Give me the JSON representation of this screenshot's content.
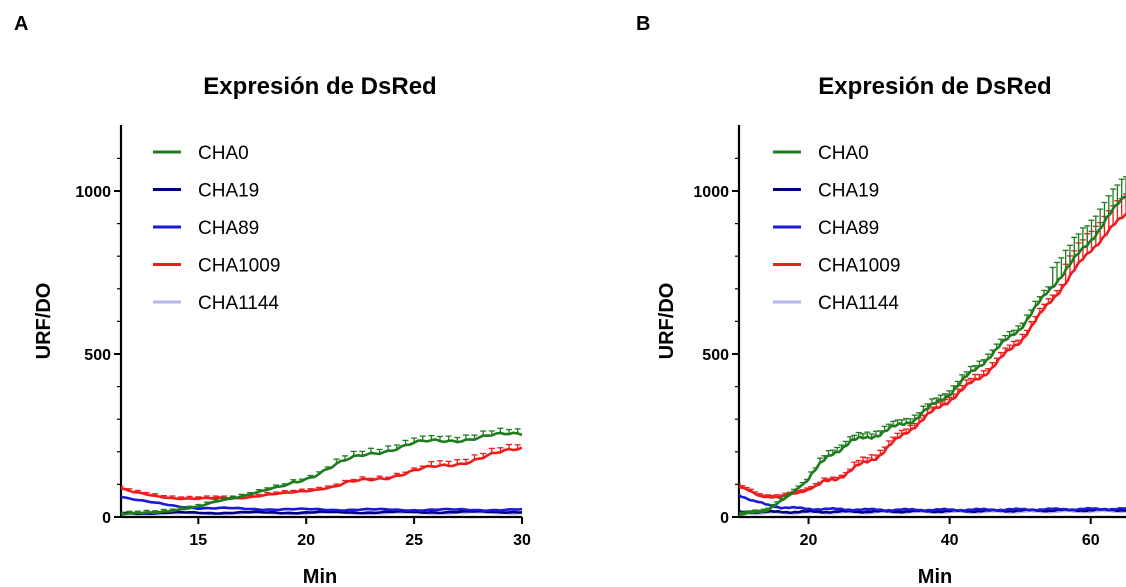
{
  "chart_data": [
    {
      "panel": "A",
      "type": "line",
      "title": "Expresión de DsRed",
      "xlabel": "Min",
      "ylabel": "URF/DO",
      "xlim": [
        11,
        30
      ],
      "ylim": [
        0,
        1200
      ],
      "xticks": [
        15,
        20,
        25,
        30
      ],
      "yticks": [
        0,
        500,
        1000
      ],
      "error_bars": true,
      "legend_position": "top-left",
      "series": [
        {
          "name": "CHA0",
          "color": "#1e7b1e",
          "x": [
            11,
            13,
            15,
            16,
            17,
            18,
            19,
            20,
            21,
            22,
            23,
            24,
            25,
            26,
            27,
            28,
            29,
            30
          ],
          "y": [
            5,
            15,
            30,
            50,
            65,
            80,
            95,
            120,
            150,
            175,
            195,
            210,
            225,
            232,
            238,
            243,
            250,
            258
          ]
        },
        {
          "name": "CHA19",
          "color": "#00007f",
          "x": [
            11,
            15,
            20,
            25,
            30
          ],
          "y": [
            12,
            13,
            14,
            15,
            16
          ]
        },
        {
          "name": "CHA89",
          "color": "#1a1ad8",
          "x": [
            11,
            12,
            13,
            14,
            15,
            17,
            20,
            25,
            30
          ],
          "y": [
            70,
            55,
            42,
            33,
            28,
            25,
            23,
            22,
            22
          ]
        },
        {
          "name": "CHA1009",
          "color": "#ee1c1c",
          "x": [
            11,
            12,
            13,
            14,
            15,
            17,
            19,
            21,
            23,
            25,
            27,
            29,
            30
          ],
          "y": [
            95,
            75,
            65,
            58,
            55,
            60,
            72,
            90,
            115,
            140,
            165,
            195,
            212
          ]
        },
        {
          "name": "CHA1144",
          "color": "#b6b6ee",
          "x": [
            11,
            15,
            20,
            25,
            30
          ],
          "y": [
            10,
            11,
            12,
            12,
            13
          ]
        }
      ]
    },
    {
      "panel": "B",
      "type": "line",
      "title": "Expresión de DsRed",
      "xlabel": "Min",
      "ylabel": "URF/DO",
      "xlim": [
        10,
        65
      ],
      "ylim": [
        0,
        1200
      ],
      "xticks": [
        20,
        40,
        60
      ],
      "yticks": [
        0,
        500,
        1000
      ],
      "error_bars": true,
      "legend_position": "top-left",
      "series": [
        {
          "name": "CHA0",
          "color": "#1e7b1e",
          "x": [
            10,
            14,
            17,
            20,
            23,
            26,
            30,
            35,
            40,
            45,
            50,
            55,
            60,
            65
          ],
          "y": [
            5,
            20,
            60,
            120,
            190,
            230,
            255,
            300,
            380,
            480,
            580,
            720,
            850,
            990
          ]
        },
        {
          "name": "CHA19",
          "color": "#00007f",
          "x": [
            10,
            20,
            30,
            40,
            50,
            65
          ],
          "y": [
            15,
            16,
            17,
            18,
            20,
            22
          ]
        },
        {
          "name": "CHA89",
          "color": "#1a1ad8",
          "x": [
            10,
            12,
            14,
            16,
            20,
            30,
            40,
            50,
            65
          ],
          "y": [
            70,
            50,
            38,
            30,
            25,
            22,
            22,
            23,
            25
          ]
        },
        {
          "name": "CHA1009",
          "color": "#ee1c1c",
          "x": [
            10,
            13,
            16,
            20,
            25,
            30,
            35,
            40,
            45,
            50,
            55,
            60,
            65
          ],
          "y": [
            95,
            65,
            60,
            85,
            130,
            190,
            280,
            360,
            440,
            540,
            680,
            820,
            930
          ]
        },
        {
          "name": "CHA1144",
          "color": "#b6b6ee",
          "x": [
            10,
            20,
            30,
            40,
            50,
            65
          ],
          "y": [
            12,
            13,
            14,
            15,
            16,
            18
          ]
        }
      ]
    }
  ]
}
